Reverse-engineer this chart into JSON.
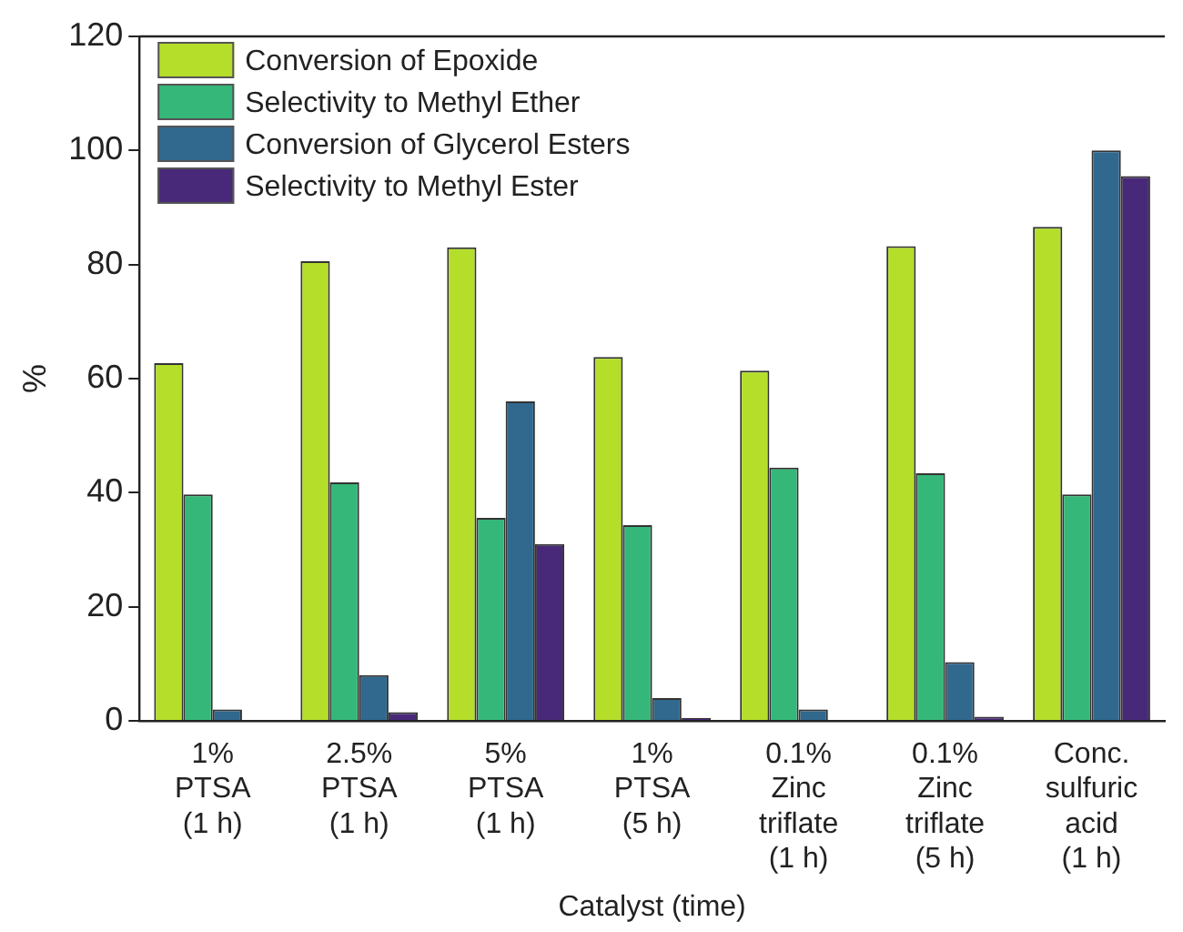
{
  "chart_data": {
    "type": "bar",
    "xlabel": "Catalyst (time)",
    "ylabel": "%",
    "categories": [
      "1%\nPTSA\n(1 h)",
      "2.5%\nPTSA\n(1 h)",
      "5%\nPTSA\n(1 h)",
      "1%\nPTSA\n(5 h)",
      "0.1%\nZinc\ntriflate\n(1 h)",
      "0.1%\nZinc\ntriflate\n(5 h)",
      "Conc.\nsulfuric\nacid\n(1 h)"
    ],
    "series": [
      {
        "name": "Conversion of Epoxide",
        "color": "#b5de2b",
        "values": [
          62.7,
          80.6,
          83,
          63.8,
          61.4,
          83.2,
          86.6
        ]
      },
      {
        "name": "Selectivity to Methyl Ether",
        "color": "#35b779",
        "values": [
          39.7,
          41.8,
          35.6,
          34.3,
          44.4,
          43.4,
          39.7
        ]
      },
      {
        "name": "Conversion of Glycerol Esters",
        "color": "#31688e",
        "values": [
          2,
          8,
          56,
          4,
          2,
          10.3,
          100
        ]
      },
      {
        "name": "Selectivity to Methyl Ester",
        "color": "#482878",
        "values": [
          0,
          1.5,
          31,
          0.5,
          0,
          0.7,
          95.5
        ]
      }
    ],
    "ylim": [
      0,
      120
    ],
    "yticks": [
      0,
      20,
      40,
      60,
      80,
      100,
      120
    ],
    "grid": false,
    "legend": "top left"
  }
}
